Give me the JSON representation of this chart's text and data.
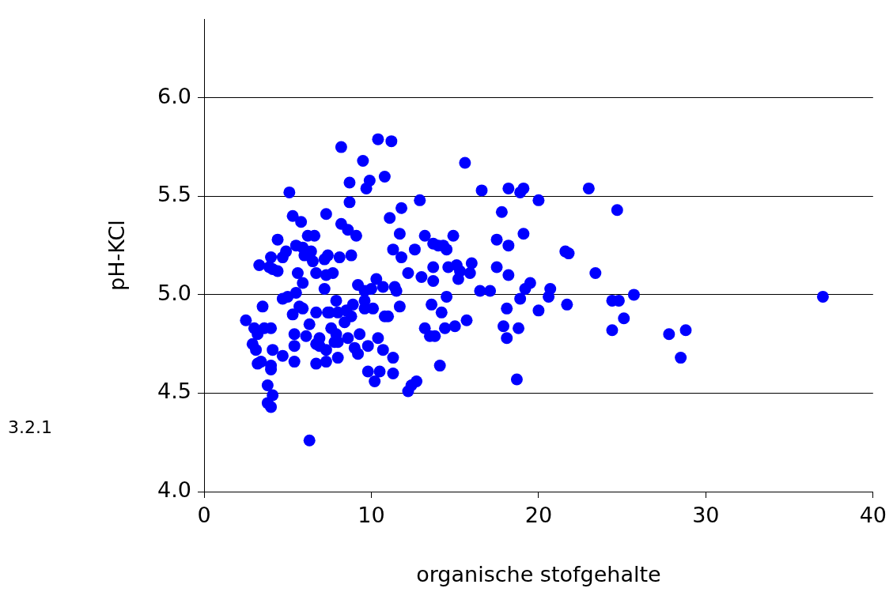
{
  "chart_data": {
    "type": "scatter",
    "xlabel": "organische stofgehalte",
    "ylabel": "pH-KCl",
    "annotations": [
      "3.2.1"
    ],
    "xlim": [
      0,
      40
    ],
    "xticks": [
      0,
      10,
      20,
      30,
      40
    ],
    "ylim": [
      4,
      6.4
    ],
    "yticks": [
      {
        "value": 4,
        "label": "4.0"
      },
      {
        "value": 4.5,
        "label": "4.5"
      },
      {
        "value": 5,
        "label": "5.0"
      },
      {
        "value": 5.5,
        "label": "5.5"
      },
      {
        "value": 6,
        "label": "6.0"
      }
    ],
    "grid": "y",
    "marker": "circle",
    "legend": false,
    "series": [
      {
        "color": "#0000ff",
        "x": [
          2.5,
          3.0,
          2.9,
          3.1,
          3.2,
          3.2,
          3.3,
          3.5,
          3.6,
          3.4,
          3.8,
          3.8,
          4.0,
          4.1,
          4.0,
          3.9,
          4.1,
          4.0,
          4.1,
          4.0,
          4.0,
          4.4,
          4.4,
          4.7,
          4.7,
          4.7,
          4.9,
          5.0,
          5.1,
          5.3,
          5.3,
          5.4,
          5.4,
          5.4,
          5.5,
          5.6,
          5.5,
          5.7,
          5.8,
          5.9,
          6.0,
          5.9,
          6.1,
          5.9,
          6.2,
          6.3,
          6.4,
          6.5,
          6.3,
          6.6,
          6.7,
          6.7,
          6.7,
          6.9,
          6.7,
          6.9,
          7.2,
          7.2,
          7.3,
          7.3,
          7.4,
          7.3,
          7.3,
          7.6,
          7.5,
          7.4,
          7.7,
          7.8,
          7.9,
          7.9,
          8.0,
          8.0,
          8.0,
          8.1,
          8.2,
          8.2,
          8.4,
          8.5,
          8.6,
          8.6,
          8.7,
          8.7,
          8.8,
          8.8,
          8.9,
          9.0,
          9.1,
          9.2,
          9.2,
          9.3,
          9.5,
          9.6,
          9.6,
          9.6,
          9.7,
          9.8,
          9.8,
          9.9,
          10.1,
          10.0,
          10.2,
          10.4,
          10.3,
          10.4,
          10.5,
          10.7,
          10.8,
          10.7,
          11.0,
          11.1,
          11.2,
          11.3,
          11.3,
          11.4,
          11.3,
          11.5,
          11.7,
          11.7,
          11.8,
          11.8,
          12.2,
          12.2,
          12.4,
          12.7,
          12.6,
          12.9,
          13.0,
          13.2,
          13.2,
          13.5,
          13.6,
          13.7,
          13.7,
          13.8,
          13.7,
          14.0,
          14.1,
          14.2,
          14.3,
          14.4,
          14.5,
          14.6,
          14.5,
          15.0,
          14.9,
          15.1,
          15.2,
          15.3,
          15.7,
          15.6,
          15.9,
          16.0,
          16.5,
          16.6,
          17.1,
          17.5,
          17.5,
          17.8,
          17.9,
          18.1,
          18.1,
          18.2,
          18.2,
          18.2,
          18.7,
          18.8,
          18.9,
          18.9,
          19.1,
          19.1,
          19.2,
          19.5,
          20.0,
          20.0,
          20.7,
          20.6,
          21.6,
          21.7,
          21.8,
          23.0,
          23.4,
          24.4,
          24.4,
          24.7,
          24.8,
          25.1,
          25.7,
          27.8,
          28.5,
          28.8,
          37.0,
          10.8
        ],
        "values": [
          4.87,
          4.83,
          4.75,
          4.72,
          4.65,
          4.8,
          5.15,
          4.94,
          4.83,
          4.66,
          4.54,
          4.45,
          4.43,
          4.49,
          5.19,
          5.14,
          5.13,
          4.83,
          4.72,
          4.64,
          4.62,
          5.28,
          5.12,
          4.98,
          4.69,
          5.19,
          5.22,
          4.99,
          5.52,
          5.4,
          4.9,
          4.8,
          4.66,
          4.74,
          5.25,
          5.11,
          5.01,
          4.94,
          5.37,
          5.24,
          5.2,
          5.06,
          4.79,
          4.93,
          5.3,
          4.26,
          5.22,
          5.17,
          4.85,
          5.3,
          4.75,
          4.91,
          5.11,
          4.78,
          4.65,
          4.74,
          5.03,
          5.18,
          5.41,
          5.1,
          4.91,
          4.66,
          4.72,
          4.83,
          4.91,
          5.2,
          5.11,
          4.76,
          4.97,
          4.8,
          4.68,
          4.76,
          4.91,
          5.19,
          5.75,
          5.36,
          4.86,
          4.92,
          5.33,
          4.78,
          5.57,
          5.47,
          5.2,
          4.89,
          4.95,
          4.73,
          5.3,
          5.05,
          4.7,
          4.8,
          5.68,
          5.02,
          4.97,
          4.93,
          5.54,
          4.74,
          4.61,
          5.58,
          4.93,
          5.03,
          4.56,
          5.79,
          5.08,
          4.78,
          4.61,
          4.72,
          5.6,
          5.04,
          4.89,
          5.39,
          5.78,
          5.23,
          4.68,
          5.04,
          4.6,
          5.02,
          5.31,
          4.94,
          5.19,
          5.44,
          5.11,
          4.51,
          4.54,
          4.56,
          5.23,
          5.48,
          5.09,
          4.83,
          5.3,
          4.79,
          4.95,
          5.07,
          5.26,
          4.79,
          5.14,
          5.25,
          4.64,
          4.91,
          5.25,
          4.83,
          4.99,
          5.14,
          5.23,
          4.84,
          5.3,
          5.15,
          5.08,
          5.12,
          4.87,
          5.67,
          5.11,
          5.16,
          5.02,
          5.53,
          5.02,
          5.28,
          5.14,
          5.42,
          4.84,
          4.78,
          4.93,
          5.25,
          5.1,
          5.54,
          4.57,
          4.83,
          4.98,
          5.52,
          5.54,
          5.31,
          5.03,
          5.06,
          4.92,
          5.48,
          5.03,
          4.99,
          5.22,
          4.95,
          5.21,
          5.54,
          5.11,
          4.97,
          4.82,
          5.43,
          4.97,
          4.88,
          5.0,
          4.8,
          4.68,
          4.82,
          4.99,
          4.89
        ]
      }
    ]
  }
}
